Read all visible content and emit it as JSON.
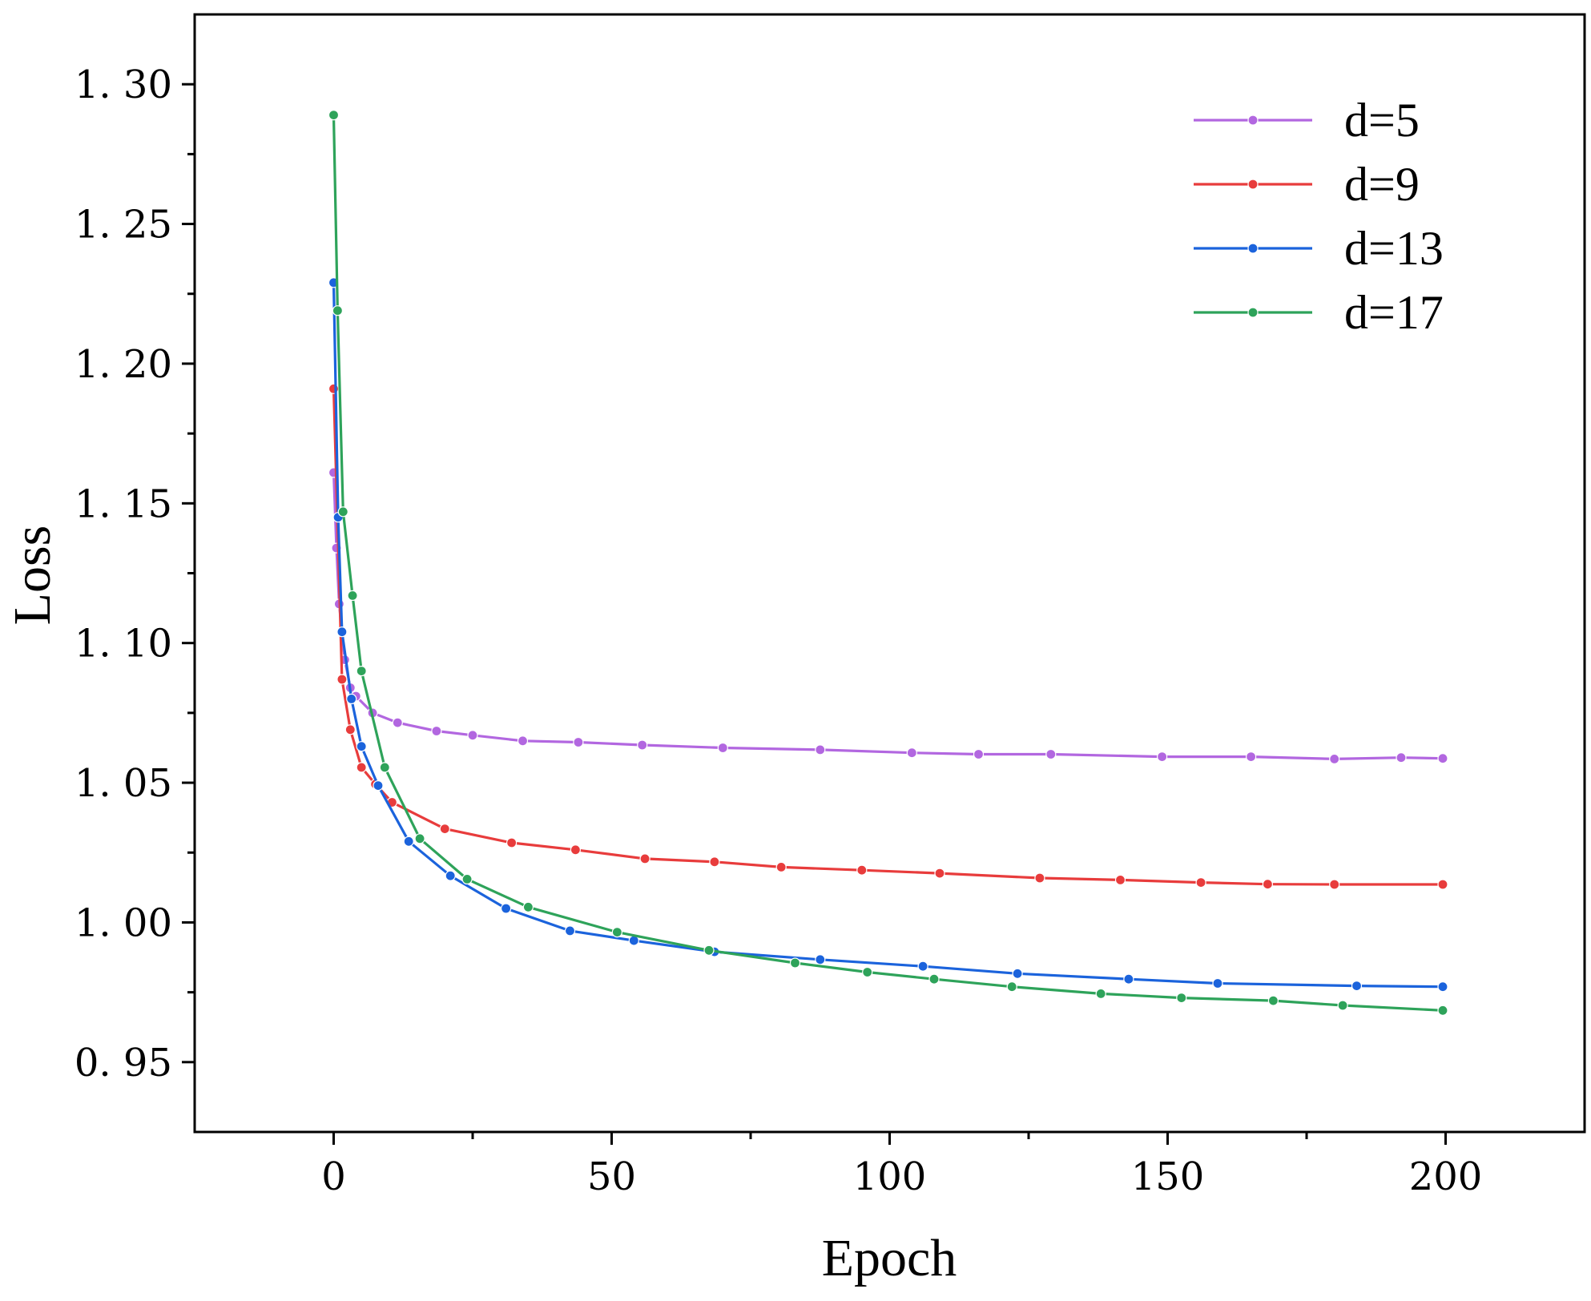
{
  "chart_data": {
    "type": "line",
    "xlabel": "Epoch",
    "ylabel": "Loss",
    "xlim": [
      -25,
      225
    ],
    "ylim": [
      0.925,
      1.325
    ],
    "xticks": [
      0,
      50,
      100,
      150,
      200
    ],
    "xtick_labels": [
      "0",
      "50",
      "100",
      "150",
      "200"
    ],
    "xminor": [
      25,
      75,
      125,
      175
    ],
    "yticks": [
      0.95,
      1.0,
      1.05,
      1.1,
      1.15,
      1.2,
      1.25,
      1.3
    ],
    "ytick_labels": [
      "0. 95",
      "1. 00",
      "1. 05",
      "1. 10",
      "1. 15",
      "1. 20",
      "1. 25",
      "1. 30"
    ],
    "yminor": [
      0.975,
      1.025,
      1.075,
      1.125,
      1.175,
      1.225,
      1.275
    ],
    "grid": false,
    "legend_position": "top-right",
    "series": [
      {
        "name": "d=5",
        "color": "#b267e0",
        "points": [
          [
            0,
            1.161
          ],
          [
            0.5,
            1.134
          ],
          [
            1,
            1.114
          ],
          [
            2,
            1.094
          ],
          [
            3,
            1.084
          ],
          [
            4,
            1.081
          ],
          [
            7,
            1.075
          ],
          [
            11.5,
            1.0715
          ],
          [
            18.5,
            1.0685
          ],
          [
            25,
            1.067
          ],
          [
            34,
            1.065
          ],
          [
            44,
            1.0645
          ],
          [
            55.5,
            1.0635
          ],
          [
            70,
            1.0625
          ],
          [
            87.5,
            1.0618
          ],
          [
            104,
            1.0607
          ],
          [
            116,
            1.0602
          ],
          [
            129,
            1.0602
          ],
          [
            149,
            1.0593
          ],
          [
            165,
            1.0593
          ],
          [
            180,
            1.0585
          ],
          [
            192,
            1.059
          ],
          [
            199.5,
            1.0587
          ]
        ]
      },
      {
        "name": "d=9",
        "color": "#e83c3c",
        "points": [
          [
            0,
            1.191
          ],
          [
            1.5,
            1.087
          ],
          [
            3,
            1.069
          ],
          [
            5,
            1.0555
          ],
          [
            7.5,
            1.0495
          ],
          [
            10.5,
            1.043
          ],
          [
            20,
            1.0335
          ],
          [
            32,
            1.0285
          ],
          [
            43.5,
            1.026
          ],
          [
            56,
            1.0228
          ],
          [
            68.5,
            1.0217
          ],
          [
            80.5,
            1.0198
          ],
          [
            95,
            1.0187
          ],
          [
            109,
            1.0176
          ],
          [
            127,
            1.0159
          ],
          [
            141.5,
            1.0152
          ],
          [
            156,
            1.0143
          ],
          [
            168,
            1.0137
          ],
          [
            180,
            1.0136
          ],
          [
            199.5,
            1.0136
          ]
        ]
      },
      {
        "name": "d=13",
        "color": "#1b63dc",
        "points": [
          [
            0,
            1.229
          ],
          [
            0.8,
            1.145
          ],
          [
            1.5,
            1.104
          ],
          [
            3.2,
            1.08
          ],
          [
            5,
            1.063
          ],
          [
            8,
            1.049
          ],
          [
            13.5,
            1.029
          ],
          [
            21,
            1.0167
          ],
          [
            31,
            1.005
          ],
          [
            42.5,
            0.997
          ],
          [
            54,
            0.9935
          ],
          [
            68.5,
            0.9895
          ],
          [
            87.5,
            0.9867
          ],
          [
            106,
            0.9843
          ],
          [
            123,
            0.9817
          ],
          [
            143,
            0.9797
          ],
          [
            159,
            0.9782
          ],
          [
            184,
            0.9773
          ],
          [
            199.5,
            0.977
          ]
        ]
      },
      {
        "name": "d=17",
        "color": "#2ea35a",
        "points": [
          [
            0,
            1.289
          ],
          [
            0.7,
            1.219
          ],
          [
            1.7,
            1.147
          ],
          [
            3.4,
            1.117
          ],
          [
            5,
            1.09
          ],
          [
            9.2,
            1.0555
          ],
          [
            15.5,
            1.03
          ],
          [
            24,
            1.0155
          ],
          [
            35,
            1.0055
          ],
          [
            51,
            0.9965
          ],
          [
            67.5,
            0.99
          ],
          [
            83,
            0.9855
          ],
          [
            96,
            0.9822
          ],
          [
            108,
            0.9797
          ],
          [
            122,
            0.977
          ],
          [
            138,
            0.9745
          ],
          [
            152.5,
            0.973
          ],
          [
            169,
            0.972
          ],
          [
            181.5,
            0.9703
          ],
          [
            199.5,
            0.9685
          ]
        ]
      }
    ]
  }
}
